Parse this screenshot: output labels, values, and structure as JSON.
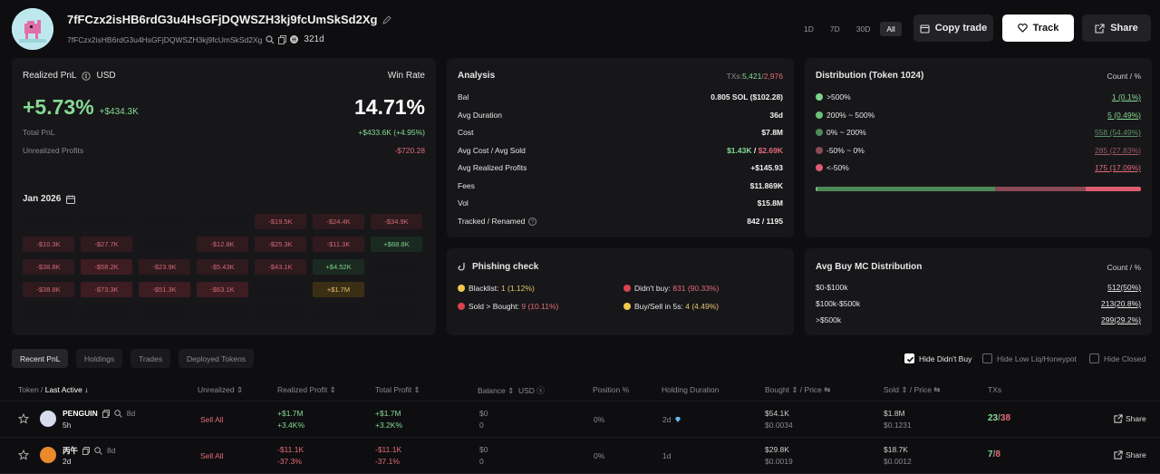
{
  "header": {
    "title": "7fFCzx2isHB6rdG3u4HsGFjDQWSZH3kj9fcUmSkSd2Xg",
    "sub_address": "7fFCzx2isHB6rdG3u4HsGFjDQWSZH3kj9fcUmSkSd2Xg",
    "age": "321d",
    "periods": [
      "1D",
      "7D",
      "30D",
      "All"
    ],
    "active_period": "All",
    "copy_trade": "Copy trade",
    "track": "Track",
    "share": "Share"
  },
  "pnl": {
    "label": "Realized PnL",
    "currency": "USD",
    "pct": "+5.73%",
    "usd": "+$434.3K",
    "win_rate_label": "Win Rate",
    "win_rate": "14.71%",
    "total_pnl_label": "Total PnL",
    "total_pnl": "+$433.6K (+4.95%)",
    "unrealized_label": "Unrealized Profits",
    "unrealized": "-$720.28",
    "month": "Jan 2026",
    "calendar": [
      [
        "",
        "",
        "",
        "",
        "-$19.5K",
        "-$24.4K",
        "-$34.9K"
      ],
      [
        "-$10.3K",
        "-$27.7K",
        "",
        "-$12.8K",
        "-$25.3K",
        "-$11.3K",
        "+$68.8K"
      ],
      [
        "-$38.8K",
        "-$58.2K",
        "-$23.9K",
        "-$5.43K",
        "-$43.1K",
        "+$4.52K",
        ""
      ],
      [
        "-$38.8K",
        "-$73.3K",
        "-$51.3K",
        "-$63.1K",
        "",
        "+$1.7M",
        ""
      ],
      [
        "",
        "",
        "",
        "",
        "",
        "",
        ""
      ]
    ]
  },
  "analysis": {
    "title": "Analysis",
    "txs_label": "TXs",
    "txs_buy": "5,421",
    "txs_sell": "2,976",
    "rows": [
      {
        "label": "Bal",
        "value": "0.805 SOL ($102.28)"
      },
      {
        "label": "Avg Duration",
        "value": "36d"
      },
      {
        "label": "Cost",
        "value": "$7.8M"
      },
      {
        "label": "Avg Cost / Avg Sold",
        "value_a": "$1.43K",
        "value_b": "$2.69K"
      },
      {
        "label": "Avg Realized Profits",
        "value": "+$145.93"
      },
      {
        "label": "Fees",
        "value": "$11.869K"
      },
      {
        "label": "Vol",
        "value": "$15.8M"
      },
      {
        "label": "Tracked / Renamed",
        "value": "842 / 1195"
      }
    ]
  },
  "distribution": {
    "title": "Distribution (Token 1024)",
    "count_label": "Count / %",
    "rows": [
      {
        "label": ">500%",
        "value": "1 (0.1%)",
        "color": "#7ed38c"
      },
      {
        "label": "200% ~ 500%",
        "value": "5 (0.49%)",
        "color": "#6cbf78"
      },
      {
        "label": "0% ~ 200%",
        "value": "558 (54.49%)",
        "color": "#4e8a58"
      },
      {
        "label": "-50% ~ 0%",
        "value": "285 (27.83%)",
        "color": "#8a4a55"
      },
      {
        "label": "<-50%",
        "value": "175 (17.09%)",
        "color": "#e05c72"
      }
    ],
    "bar_pct": [
      0.1,
      0.49,
      54.49,
      27.83,
      17.09
    ]
  },
  "phishing": {
    "title": "Phishing check",
    "items": [
      {
        "label": "Blacklist:",
        "value": "1 (1.12%)",
        "dot": "#f2c94c"
      },
      {
        "label": "Didn't buy:",
        "value": "831 (90.33%)",
        "dot": "#d9434f"
      },
      {
        "label": "Sold > Bought:",
        "value": "9 (10.11%)",
        "dot": "#d9434f"
      },
      {
        "label": "Buy/Sell in 5s:",
        "value": "4 (4.49%)",
        "dot": "#f2c94c"
      }
    ]
  },
  "avg_buy": {
    "title": "Avg Buy MC Distribution",
    "count_label": "Count / %",
    "rows": [
      {
        "label": "$0-$100k",
        "value": "512(50%)"
      },
      {
        "label": "$100k-$500k",
        "value": "213(20.8%)"
      },
      {
        "label": ">$500k",
        "value": "299(29.2%)"
      }
    ]
  },
  "tabs": [
    "Recent PnL",
    "Holdings",
    "Trades",
    "Deployed Tokens"
  ],
  "filters": [
    "Hide Didn't Buy",
    "Hide Low Liq/Honeypot",
    "Hide Closed"
  ],
  "columns": {
    "token": "Token",
    "last_active": "Last Active",
    "unrealized": "Unrealized",
    "realized": "Realized Profit",
    "total": "Total Profit",
    "balance": "Balance",
    "usd": "USD",
    "position": "Position %",
    "holding": "Holding Duration",
    "bought": "Bought",
    "price": "Price",
    "sold": "Sold",
    "txs": "TXs"
  },
  "rows": [
    {
      "name": "PENGUIN",
      "age": "8d",
      "active": "5h",
      "unrealized": "Sell All",
      "realized": "+$1.7M",
      "realized_pct": "+3.4K%",
      "total": "+$1.7M",
      "total_pct": "+3.2K%",
      "balance": "$0",
      "balance_sub": "0",
      "position": "0%",
      "holding": "2d",
      "bought": "$54.1K",
      "buy_price": "$0.0034",
      "sold": "$1.8M",
      "sell_price": "$0.1231",
      "tx_buy": "23",
      "tx_sell": "38",
      "share": "Share"
    },
    {
      "name": "丙午",
      "age": "8d",
      "active": "2d",
      "unrealized": "Sell All",
      "realized": "-$11.1K",
      "realized_pct": "-37.3%",
      "total": "-$11.1K",
      "total_pct": "-37.1%",
      "balance": "$0",
      "balance_sub": "0",
      "position": "0%",
      "holding": "1d",
      "bought": "$29.8K",
      "buy_price": "$0.0019",
      "sold": "$18.7K",
      "sell_price": "$0.0012",
      "tx_buy": "7",
      "tx_sell": "8",
      "share": "Share"
    }
  ]
}
